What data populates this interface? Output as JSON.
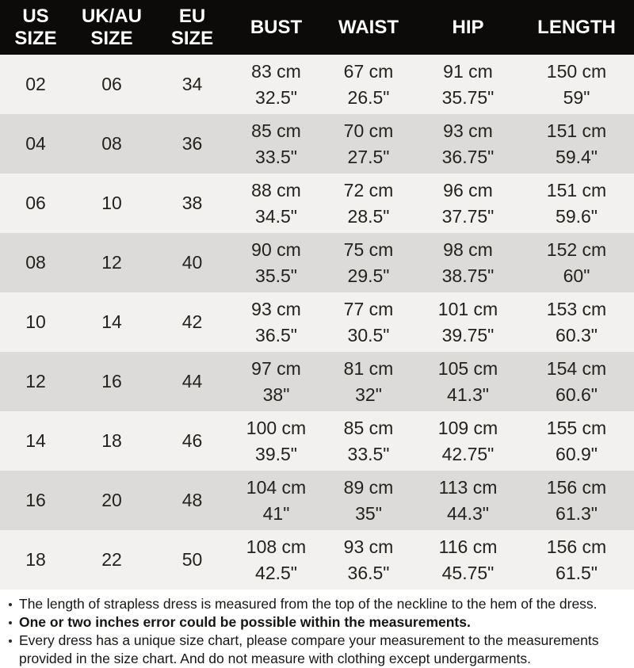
{
  "colors": {
    "header_bg": "#0c0b09",
    "header_text": "#ffffff",
    "row_light": "#f2f1ef",
    "row_dark": "#dcdbd9",
    "cell_text": "#24221f",
    "notes_text": "#171614"
  },
  "table": {
    "columns": [
      {
        "id": "us",
        "label": "US\nSIZE"
      },
      {
        "id": "uk_au",
        "label": "UK/AU\nSIZE"
      },
      {
        "id": "eu",
        "label": "EU\nSIZE"
      },
      {
        "id": "bust",
        "label": "BUST"
      },
      {
        "id": "waist",
        "label": "WAIST"
      },
      {
        "id": "hip",
        "label": "HIP"
      },
      {
        "id": "length",
        "label": "LENGTH"
      }
    ],
    "rows": [
      {
        "us": "02",
        "uk_au": "06",
        "eu": "34",
        "bust": {
          "cm": "83 cm",
          "inch": "32.5\""
        },
        "waist": {
          "cm": "67 cm",
          "inch": "26.5\""
        },
        "hip": {
          "cm": "91 cm",
          "inch": "35.75\""
        },
        "length": {
          "cm": "150 cm",
          "inch": "59\""
        }
      },
      {
        "us": "04",
        "uk_au": "08",
        "eu": "36",
        "bust": {
          "cm": "85 cm",
          "inch": "33.5\""
        },
        "waist": {
          "cm": "70 cm",
          "inch": "27.5\""
        },
        "hip": {
          "cm": "93 cm",
          "inch": "36.75\""
        },
        "length": {
          "cm": "151 cm",
          "inch": "59.4\""
        }
      },
      {
        "us": "06",
        "uk_au": "10",
        "eu": "38",
        "bust": {
          "cm": "88 cm",
          "inch": "34.5\""
        },
        "waist": {
          "cm": "72 cm",
          "inch": "28.5\""
        },
        "hip": {
          "cm": "96 cm",
          "inch": "37.75\""
        },
        "length": {
          "cm": "151 cm",
          "inch": "59.6\""
        }
      },
      {
        "us": "08",
        "uk_au": "12",
        "eu": "40",
        "bust": {
          "cm": "90 cm",
          "inch": "35.5\""
        },
        "waist": {
          "cm": "75 cm",
          "inch": "29.5\""
        },
        "hip": {
          "cm": "98 cm",
          "inch": "38.75\""
        },
        "length": {
          "cm": "152 cm",
          "inch": "60\""
        }
      },
      {
        "us": "10",
        "uk_au": "14",
        "eu": "42",
        "bust": {
          "cm": "93 cm",
          "inch": "36.5\""
        },
        "waist": {
          "cm": "77 cm",
          "inch": "30.5\""
        },
        "hip": {
          "cm": "101 cm",
          "inch": "39.75\""
        },
        "length": {
          "cm": "153 cm",
          "inch": "60.3\""
        }
      },
      {
        "us": "12",
        "uk_au": "16",
        "eu": "44",
        "bust": {
          "cm": "97 cm",
          "inch": "38\""
        },
        "waist": {
          "cm": "81 cm",
          "inch": "32\""
        },
        "hip": {
          "cm": "105 cm",
          "inch": "41.3\""
        },
        "length": {
          "cm": "154 cm",
          "inch": "60.6\""
        }
      },
      {
        "us": "14",
        "uk_au": "18",
        "eu": "46",
        "bust": {
          "cm": "100 cm",
          "inch": "39.5\""
        },
        "waist": {
          "cm": "85 cm",
          "inch": "33.5\""
        },
        "hip": {
          "cm": "109 cm",
          "inch": "42.75\""
        },
        "length": {
          "cm": "155 cm",
          "inch": "60.9\""
        }
      },
      {
        "us": "16",
        "uk_au": "20",
        "eu": "48",
        "bust": {
          "cm": "104 cm",
          "inch": "41\""
        },
        "waist": {
          "cm": "89 cm",
          "inch": "35\""
        },
        "hip": {
          "cm": "113 cm",
          "inch": "44.3\""
        },
        "length": {
          "cm": "156 cm",
          "inch": "61.3\""
        }
      },
      {
        "us": "18",
        "uk_au": "22",
        "eu": "50",
        "bust": {
          "cm": "108 cm",
          "inch": "42.5\""
        },
        "waist": {
          "cm": "93 cm",
          "inch": "36.5\""
        },
        "hip": {
          "cm": "116 cm",
          "inch": "45.75\""
        },
        "length": {
          "cm": "156 cm",
          "inch": "61.5\""
        }
      }
    ]
  },
  "notes": [
    {
      "text": "The length of strapless dress is measured from the top of the neckline to the hem of the dress.",
      "bold": false
    },
    {
      "text": "One or two inches error could be possible within the measurements.",
      "bold": true
    },
    {
      "text": "Every dress has a unique size chart, please compare your measurement to the measurements provided in the size chart. And do not measure with clothing except undergarments.",
      "bold": false
    }
  ],
  "chart_data": {
    "type": "table",
    "title": "Dress size chart",
    "columns": [
      "US SIZE",
      "UK/AU SIZE",
      "EU SIZE",
      "BUST",
      "WAIST",
      "HIP",
      "LENGTH"
    ],
    "rows": [
      [
        "02",
        "06",
        "34",
        "83 cm / 32.5\"",
        "67 cm / 26.5\"",
        "91 cm / 35.75\"",
        "150 cm / 59\""
      ],
      [
        "04",
        "08",
        "36",
        "85 cm / 33.5\"",
        "70 cm / 27.5\"",
        "93 cm / 36.75\"",
        "151 cm / 59.4\""
      ],
      [
        "06",
        "10",
        "38",
        "88 cm / 34.5\"",
        "72 cm / 28.5\"",
        "96 cm / 37.75\"",
        "151 cm / 59.6\""
      ],
      [
        "08",
        "12",
        "40",
        "90 cm / 35.5\"",
        "75 cm / 29.5\"",
        "98 cm / 38.75\"",
        "152 cm / 60\""
      ],
      [
        "10",
        "14",
        "42",
        "93 cm / 36.5\"",
        "77 cm / 30.5\"",
        "101 cm / 39.75\"",
        "153 cm / 60.3\""
      ],
      [
        "12",
        "16",
        "44",
        "97 cm / 38\"",
        "81 cm / 32\"",
        "105 cm / 41.3\"",
        "154 cm / 60.6\""
      ],
      [
        "14",
        "18",
        "46",
        "100 cm / 39.5\"",
        "85 cm / 33.5\"",
        "109 cm / 42.75\"",
        "155 cm / 60.9\""
      ],
      [
        "16",
        "20",
        "48",
        "104 cm / 41\"",
        "89 cm / 35\"",
        "113 cm / 44.3\"",
        "156 cm / 61.3\""
      ],
      [
        "18",
        "22",
        "50",
        "108 cm / 42.5\"",
        "93 cm / 36.5\"",
        "116 cm / 45.75\"",
        "156 cm / 61.5\""
      ]
    ]
  }
}
